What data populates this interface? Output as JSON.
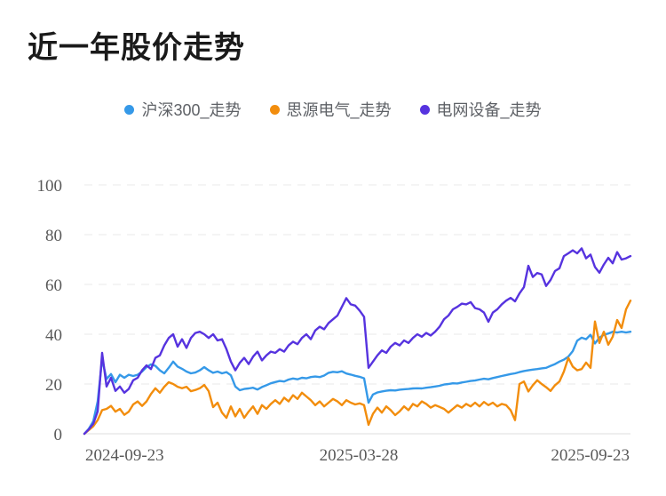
{
  "page": {
    "title": "近一年股价走势"
  },
  "legend": {
    "items": [
      {
        "label": "沪深300_走势",
        "color": "#3599E8"
      },
      {
        "label": "思源电气_走势",
        "color": "#F28D0D"
      },
      {
        "label": "电网设备_走势",
        "color": "#5633DF"
      }
    ]
  },
  "chart_data": {
    "type": "line",
    "title": "近一年股价走势",
    "xlabel": "",
    "ylabel": "",
    "ylim": [
      0,
      100
    ],
    "y_ticks": [
      0,
      20,
      40,
      60,
      80,
      100
    ],
    "x_tick_labels": [
      "2024-09-23",
      "2025-03-28",
      "2025-09-23"
    ],
    "grid": "horizontal dashed lines, solid zero baseline",
    "legend_position": "top center",
    "values_note": "percent change since 2024-09-23, evenly spaced samples across the one-year date axis",
    "series": [
      {
        "name": "沪深300_走势",
        "color": "#3599E8",
        "values": [
          0,
          2,
          5,
          13,
          30,
          22,
          24,
          20.7,
          23.7,
          22.5,
          23.7,
          23.2,
          23.7,
          25,
          26.8,
          27.9,
          27.3,
          25.5,
          24.3,
          26.5,
          29,
          27,
          26.1,
          25,
          24.3,
          24.6,
          25.5,
          26.8,
          25.5,
          24.5,
          25,
          24.3,
          24.8,
          23.5,
          19,
          17.5,
          18,
          18.2,
          18.5,
          17.8,
          18.8,
          19.5,
          20.3,
          20.8,
          21.2,
          21,
          21.8,
          22.2,
          21.9,
          22.5,
          22.3,
          22.8,
          23,
          22.8,
          23.4,
          24.5,
          24.9,
          24.7,
          25.1,
          24.2,
          23.8,
          23.3,
          22.9,
          22.3,
          12.5,
          15.8,
          16.6,
          17,
          17.3,
          17.5,
          17.4,
          17.7,
          17.9,
          18,
          18.2,
          18.3,
          18.2,
          18.5,
          18.7,
          19,
          19.3,
          19.8,
          20,
          20.3,
          20.2,
          20.6,
          20.9,
          21.2,
          21.4,
          21.8,
          22.1,
          21.9,
          22.4,
          22.8,
          23.2,
          23.6,
          24,
          24.3,
          24.8,
          25.2,
          25.5,
          25.8,
          26,
          26.3,
          26.5,
          27.3,
          28,
          29,
          29.8,
          31,
          33.2,
          37.4,
          38.6,
          38,
          39.8,
          36.3,
          38.6,
          39.8,
          40.3,
          41,
          40.7,
          41,
          40.7,
          41
        ]
      },
      {
        "name": "思源电气_走势",
        "color": "#F28D0D",
        "values": [
          0,
          1.5,
          3,
          5.5,
          9.5,
          10,
          11.2,
          8.9,
          10,
          7.6,
          8.9,
          11.8,
          13,
          11.2,
          13,
          16,
          18.3,
          16.5,
          18.9,
          20.7,
          20,
          18.9,
          18.3,
          18.9,
          17.1,
          17.6,
          18.3,
          19.6,
          17.1,
          10.7,
          12.5,
          8.5,
          6.4,
          11,
          7,
          10,
          6.4,
          8.9,
          11,
          8,
          11.5,
          10,
          12,
          13.5,
          12,
          14.5,
          13,
          15.5,
          14,
          16.5,
          15,
          13.5,
          11.5,
          13,
          11,
          12.5,
          14,
          13,
          11.5,
          13.5,
          12.5,
          11.8,
          12.2,
          11.5,
          3.6,
          8,
          10.5,
          8.5,
          11,
          9.5,
          7.5,
          9,
          11,
          9.5,
          12,
          11,
          13,
          12,
          10.5,
          11.5,
          10.8,
          10,
          8.5,
          10,
          11.5,
          10.5,
          12,
          11,
          12.5,
          11,
          12.8,
          11.5,
          12.5,
          11,
          12,
          11.5,
          9.5,
          5.5,
          20,
          21,
          17,
          19.5,
          21.5,
          20,
          18.7,
          17.2,
          19.5,
          21,
          25,
          30.5,
          27,
          25.5,
          26,
          28.6,
          26.5,
          45.1,
          36.5,
          41,
          35.8,
          39,
          45.7,
          42.5,
          50,
          53.5
        ]
      },
      {
        "name": "电网设备_走势",
        "color": "#5633DF",
        "values": [
          0,
          1.8,
          4,
          9,
          32.5,
          19,
          22.5,
          17.2,
          19,
          16.5,
          18,
          21.5,
          22.5,
          25.5,
          27.5,
          26,
          30.5,
          31.5,
          35.5,
          38.5,
          40,
          35,
          38,
          34.5,
          38.5,
          40.5,
          41,
          40,
          38.5,
          40,
          37.5,
          38,
          34,
          29,
          25.5,
          28.5,
          30.5,
          28,
          31,
          33,
          29.5,
          31.5,
          33,
          32.5,
          34,
          33,
          35.5,
          37,
          36,
          38.5,
          40,
          38,
          41.5,
          43,
          42,
          44.5,
          46,
          47.5,
          51,
          54.5,
          52,
          51.5,
          49.5,
          47,
          26.5,
          29,
          31.5,
          33.5,
          32.5,
          35,
          36.5,
          35.5,
          37.5,
          36.5,
          38.5,
          40,
          39,
          40.5,
          39.5,
          41,
          43,
          46,
          47.5,
          50,
          51,
          52.3,
          52,
          52.9,
          50.5,
          50,
          48.7,
          45,
          48.7,
          50,
          52,
          53.5,
          54.6,
          53.2,
          56.4,
          58.9,
          67.5,
          63,
          64.6,
          64,
          59.4,
          61.8,
          65.4,
          66.5,
          71.4,
          72.5,
          73.7,
          72.5,
          74.5,
          70.5,
          72,
          67,
          64.7,
          68,
          70.7,
          68.5,
          73,
          70,
          70.5,
          71.4
        ]
      }
    ]
  }
}
